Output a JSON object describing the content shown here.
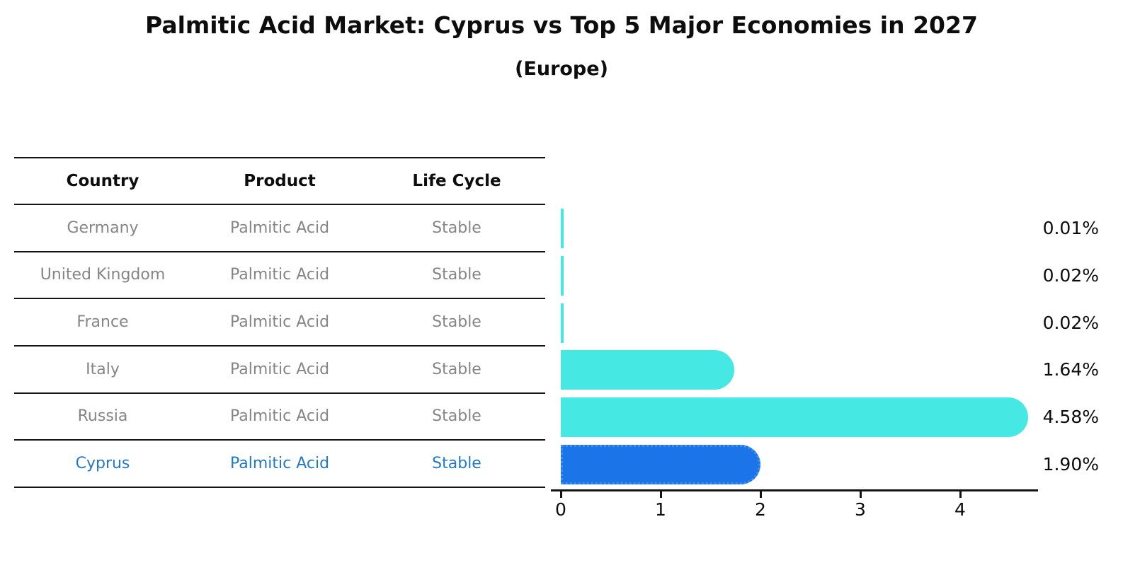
{
  "title": "Palmitic Acid Market: Cyprus vs Top 5 Major Economies in 2027",
  "subtitle": "(Europe)",
  "table": {
    "headers": [
      "Country",
      "Product",
      "Life Cycle"
    ],
    "rows": [
      {
        "country": "Germany",
        "product": "Palmitic Acid",
        "life_cycle": "Stable",
        "highlight": false
      },
      {
        "country": "United Kingdom",
        "product": "Palmitic Acid",
        "life_cycle": "Stable",
        "highlight": false
      },
      {
        "country": "France",
        "product": "Palmitic Acid",
        "life_cycle": "Stable",
        "highlight": false
      },
      {
        "country": "Italy",
        "product": "Palmitic Acid",
        "life_cycle": "Stable",
        "highlight": false
      },
      {
        "country": "Russia",
        "product": "Palmitic Acid",
        "life_cycle": "Stable",
        "highlight": false
      },
      {
        "country": "Cyprus",
        "product": "Palmitic Acid",
        "life_cycle": "Stable",
        "highlight": true
      }
    ]
  },
  "chart_data": {
    "type": "bar",
    "orientation": "horizontal",
    "title": "Palmitic Acid Market: Cyprus vs Top 5 Major Economies in 2027",
    "subtitle": "(Europe)",
    "categories": [
      "Germany",
      "United Kingdom",
      "France",
      "Italy",
      "Russia",
      "Cyprus"
    ],
    "values": [
      0.01,
      0.02,
      0.02,
      1.64,
      4.58,
      1.9
    ],
    "value_labels": [
      "0.01%",
      "0.02%",
      "0.02%",
      "1.64%",
      "4.58%",
      "1.90%"
    ],
    "highlight_category": "Cyprus",
    "x_ticks": [
      0,
      1,
      2,
      3,
      4
    ],
    "xlim": [
      0,
      4.78
    ],
    "grid": false,
    "legend": false,
    "xlabel": "",
    "ylabel": ""
  },
  "colors": {
    "bar_default": "#46e8e4",
    "bar_highlight": "#1b74e8",
    "bar_highlight_border": "#3f8ff2",
    "row_text": "#858585",
    "highlight_text": "#2378c8",
    "axis": "#141414",
    "title_text": "#0d0d0d"
  }
}
